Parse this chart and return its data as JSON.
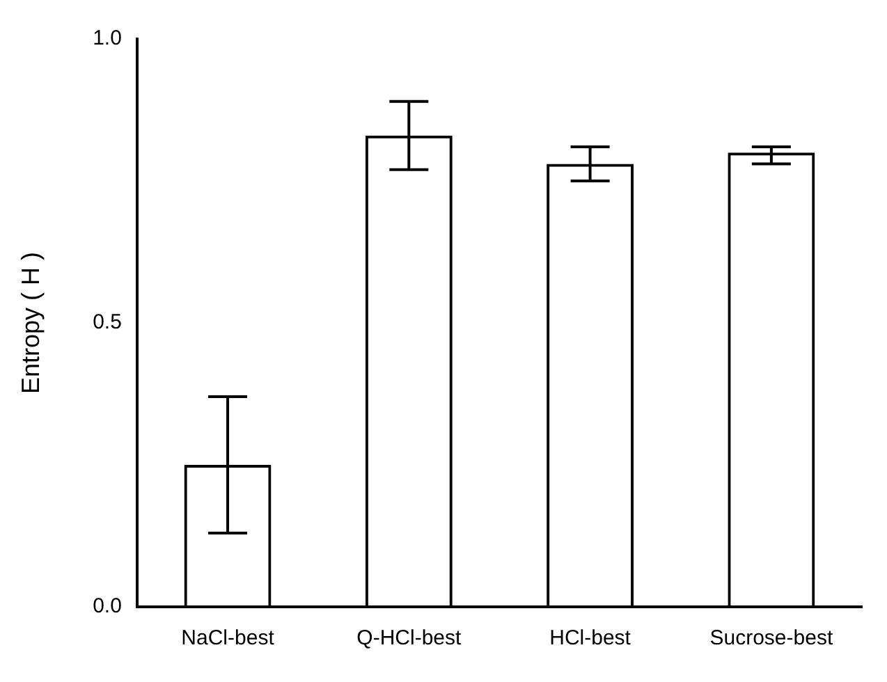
{
  "chart_data": {
    "type": "bar",
    "ylabel": "Entropy ( H )",
    "categories": [
      "NaCl-best",
      "Q-HCl-best",
      "HCl-best",
      "Sucrose-best"
    ],
    "values": [
      0.25,
      0.83,
      0.78,
      0.8
    ],
    "errors": [
      [
        0.13,
        0.37
      ],
      [
        0.77,
        0.89
      ],
      [
        0.75,
        0.81
      ],
      [
        0.78,
        0.81
      ]
    ],
    "color": "#000000",
    "ylim": [
      0,
      1
    ],
    "yticks": [
      {
        "value": 0,
        "label": "0.0"
      },
      {
        "value": 0.5,
        "label": "0.5"
      },
      {
        "value": 1,
        "label": "1.0"
      }
    ],
    "grid": false
  }
}
